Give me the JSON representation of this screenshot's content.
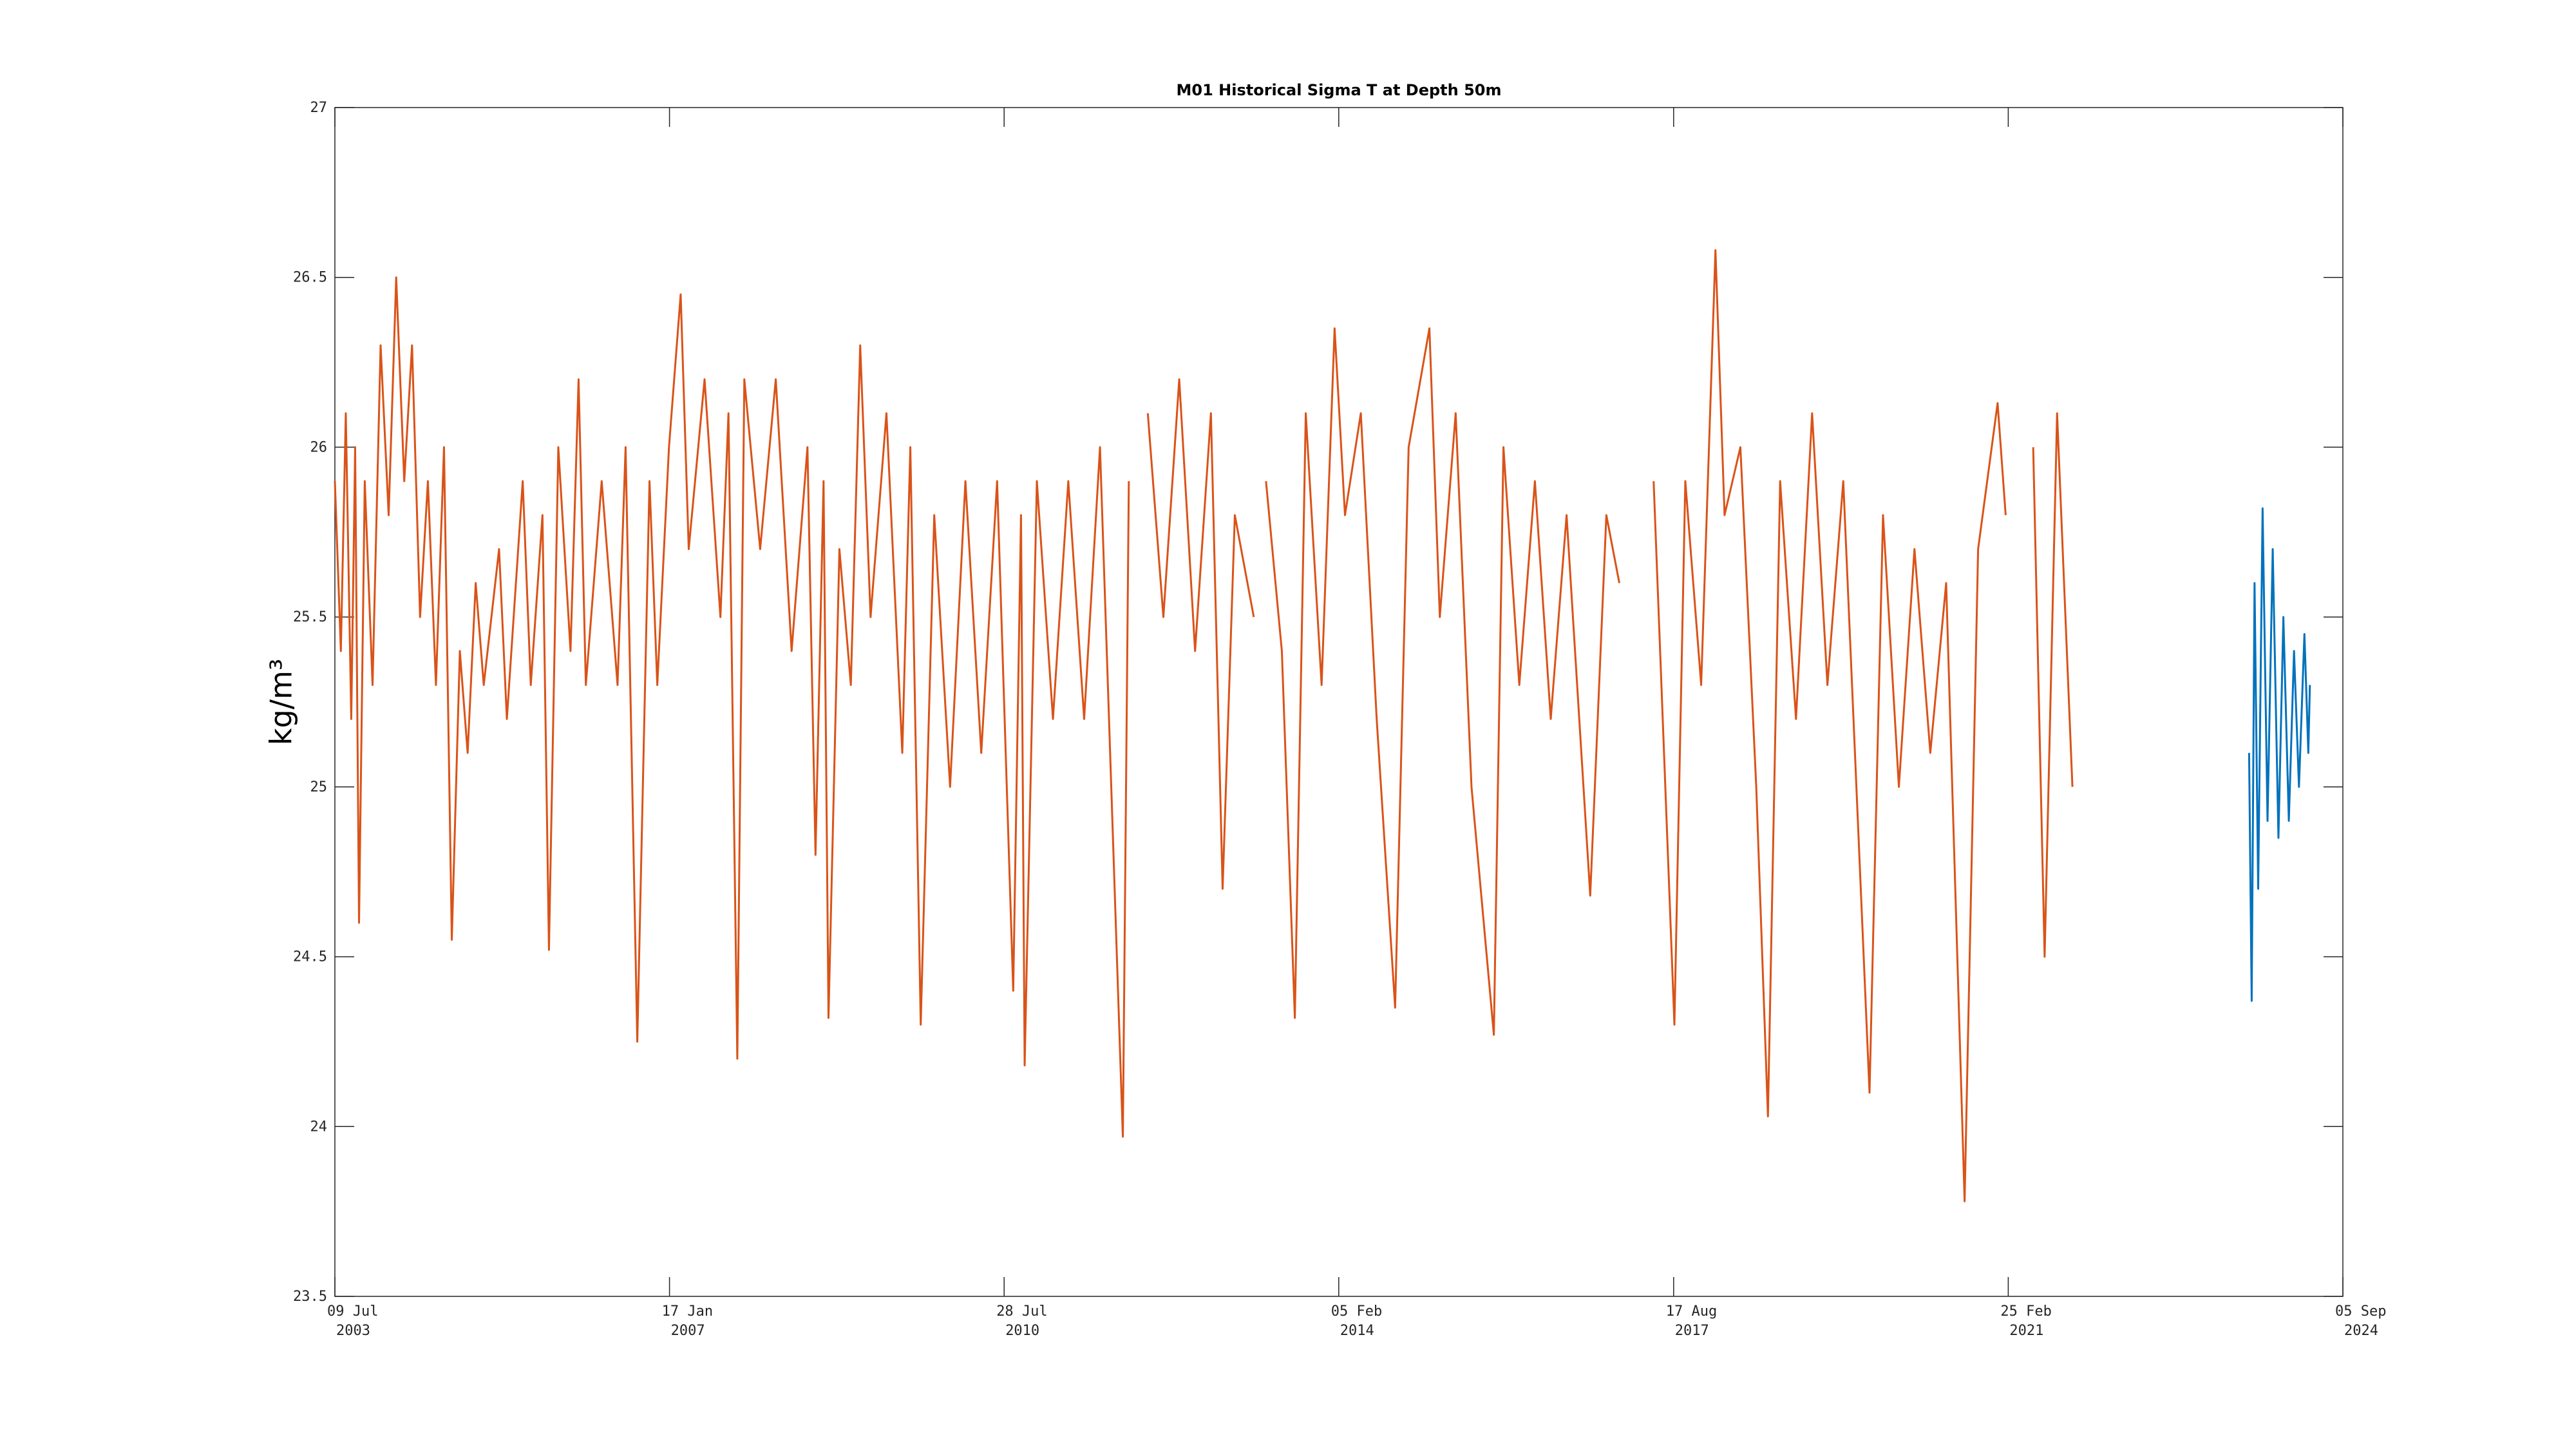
{
  "chart_data": {
    "type": "line",
    "title": "M01 Historical Sigma T at Depth 50m",
    "y_label": "kg/m³",
    "xlim": [
      "2003-07-09",
      "2024-09-05"
    ],
    "xticks": [
      {
        "value": "2003-07-09",
        "label": "09 Jul\n2003"
      },
      {
        "value": "2007-01-17",
        "label": "17 Jan\n2007"
      },
      {
        "value": "2010-07-28",
        "label": "28 Jul\n2010"
      },
      {
        "value": "2014-02-05",
        "label": "05 Feb\n2014"
      },
      {
        "value": "2017-08-17",
        "label": "17 Aug\n2017"
      },
      {
        "value": "2021-02-25",
        "label": "25 Feb\n2021"
      },
      {
        "value": "2024-09-05",
        "label": "05 Sep\n2024"
      }
    ],
    "ylim": [
      23.5,
      27
    ],
    "yticks": [
      23.5,
      24,
      24.5,
      25,
      25.5,
      26,
      26.5,
      27
    ],
    "grid": false,
    "series": [
      {
        "color": "#d95319",
        "x": [
          "2003-07-09",
          "2003-08-01",
          "2003-08-20",
          "2003-09-10",
          "2003-09-25",
          "2003-10-10",
          "2003-11-01",
          "2003-12-01",
          "2004-01-01",
          "2004-02-01",
          "2004-03-01",
          "2004-04-01",
          "2004-05-01",
          "2004-06-01",
          "2004-07-01",
          "2004-08-01",
          "2004-09-01",
          "2004-10-01",
          "2004-11-01",
          "2004-12-01",
          "2005-01-01",
          "2005-02-01",
          "2005-04-01",
          "2005-05-01",
          "2005-07-01",
          "2005-08-01",
          "2005-09-15",
          "2005-10-10",
          "2005-11-15",
          "2006-01-01",
          "2006-02-01",
          "2006-03-01",
          "2006-05-01",
          "2006-07-01",
          "2006-08-01",
          "2006-09-15",
          "2006-11-01",
          "2006-12-01",
          "2007-01-15",
          "2007-03-01",
          "2007-04-01",
          "2007-06-01",
          "2007-08-01",
          "2007-09-01",
          "2007-10-05",
          "2007-11-01",
          "2008-01-01",
          "2008-03-01",
          "2008-05-01",
          "2008-07-01",
          "2008-08-01",
          "2008-09-01",
          "2008-09-20",
          "2008-11-01",
          "2008-12-15",
          "2009-01-20",
          "2009-03-01",
          "2009-05-01",
          "2009-07-01",
          "2009-08-01",
          "2009-09-10",
          "2009-11-01",
          "2010-01-01",
          "2010-03-01",
          "2010-05-01",
          "2010-07-01",
          "2010-09-01",
          "2010-10-01",
          "2010-10-15",
          "2010-12-01",
          "2011-02-01",
          "2011-04-01",
          "2011-06-01",
          "2011-08-01",
          "2011-10-28",
          "2011-11-20",
          "2012-01-01",
          "2012-02-01",
          "2012-04-01",
          "2012-06-01",
          "2012-08-01",
          "2012-10-01",
          "2012-11-15",
          "2013-01-01",
          "2013-03-15",
          "2013-04-01",
          "2013-05-01",
          "2013-07-01",
          "2013-08-20",
          "2013-10-01",
          "2013-12-01",
          "2014-01-20",
          "2014-03-01",
          "2014-05-01",
          "2014-07-01",
          "2014-09-10",
          "2014-11-01",
          "2015-01-20",
          "2015-03-01",
          "2015-05-01",
          "2015-07-01",
          "2015-09-25",
          "2015-11-01",
          "2016-01-01",
          "2016-03-01",
          "2016-05-01",
          "2016-07-01",
          "2016-09-30",
          "2016-12-01",
          "2017-01-20",
          "2017-03-01",
          "2017-06-01",
          "2017-08-20",
          "2017-10-01",
          "2017-12-01",
          "2018-01-25",
          "2018-03-01",
          "2018-05-01",
          "2018-07-01",
          "2018-08-15",
          "2018-10-01",
          "2018-12-01",
          "2019-02-01",
          "2019-04-01",
          "2019-06-01",
          "2019-09-10",
          "2019-11-01",
          "2020-01-01",
          "2020-03-01",
          "2020-05-01",
          "2020-07-01",
          "2020-09-10",
          "2020-11-01",
          "2021-01-15",
          "2021-02-15",
          "2021-03-20",
          "2021-06-01",
          "2021-07-15",
          "2021-09-01",
          "2021-10-30"
        ],
        "values": [
          25.9,
          25.4,
          26.1,
          25.2,
          26.0,
          24.6,
          25.9,
          25.3,
          26.3,
          25.8,
          26.5,
          25.9,
          26.3,
          25.5,
          25.9,
          25.3,
          26.0,
          24.55,
          25.4,
          25.1,
          25.6,
          25.3,
          25.7,
          25.2,
          25.9,
          25.3,
          25.8,
          24.52,
          26.0,
          25.4,
          26.2,
          25.3,
          25.9,
          25.3,
          26.0,
          24.25,
          25.9,
          25.3,
          26.0,
          26.45,
          25.7,
          26.2,
          25.5,
          26.1,
          24.2,
          26.2,
          25.7,
          26.2,
          25.4,
          26.0,
          24.8,
          25.9,
          24.32,
          25.7,
          25.3,
          26.3,
          25.5,
          26.1,
          25.1,
          26.0,
          24.3,
          25.8,
          25.0,
          25.9,
          25.1,
          25.9,
          24.4,
          25.8,
          24.18,
          25.9,
          25.2,
          25.9,
          25.2,
          26.0,
          23.97,
          25.9,
          null,
          26.1,
          25.5,
          26.2,
          25.4,
          26.1,
          24.7,
          25.8,
          25.5,
          null,
          25.9,
          25.4,
          24.32,
          26.1,
          25.3,
          26.35,
          25.8,
          26.1,
          25.2,
          24.35,
          26.0,
          26.35,
          25.5,
          26.1,
          25.0,
          24.27,
          26.0,
          25.3,
          25.9,
          25.2,
          25.8,
          24.68,
          25.8,
          25.6,
          null,
          25.9,
          24.3,
          25.9,
          25.3,
          26.58,
          25.8,
          26.0,
          25.0,
          24.03,
          25.9,
          25.2,
          26.1,
          25.3,
          25.9,
          24.1,
          25.8,
          25.0,
          25.7,
          25.1,
          25.6,
          23.78,
          25.7,
          26.13,
          25.8,
          null,
          26.0,
          24.5,
          26.1,
          25.0
        ]
      },
      {
        "color": "#0072bd",
        "x": [
          "2023-09-10",
          "2023-09-20",
          "2023-10-01",
          "2023-10-15",
          "2023-11-01",
          "2023-11-20",
          "2023-12-10",
          "2024-01-01",
          "2024-01-20",
          "2024-02-10",
          "2024-03-01",
          "2024-03-20",
          "2024-04-10",
          "2024-04-25",
          "2024-05-01"
        ],
        "values": [
          25.1,
          24.37,
          25.6,
          24.7,
          25.82,
          24.9,
          25.7,
          24.85,
          25.5,
          24.9,
          25.4,
          25.0,
          25.45,
          25.1,
          25.3
        ]
      }
    ]
  }
}
